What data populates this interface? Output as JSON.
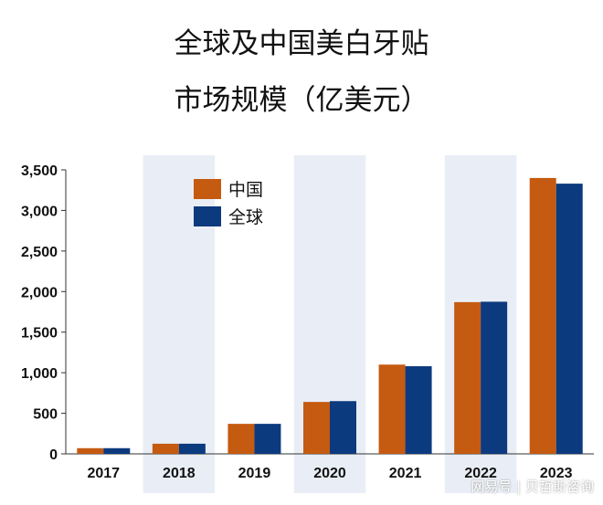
{
  "chart_data": {
    "type": "bar",
    "title_line1": "全球及中国美白牙贴",
    "title_line2": "市场规模（亿美元）",
    "categories": [
      "2017",
      "2018",
      "2019",
      "2020",
      "2021",
      "2022",
      "2023"
    ],
    "series": [
      {
        "name": "中国",
        "color": "#C55A11",
        "values": [
          70,
          125,
          370,
          640,
          1100,
          1870,
          3400
        ]
      },
      {
        "name": "全球",
        "color": "#0B3A7E",
        "values": [
          70,
          125,
          370,
          650,
          1080,
          1875,
          3330
        ]
      }
    ],
    "ylim": [
      0,
      3500
    ],
    "yticks": [
      0,
      500,
      1000,
      1500,
      2000,
      2500,
      3000,
      3500
    ],
    "ytick_labels": [
      "0",
      "500",
      "1,000",
      "1,500",
      "2,000",
      "2,500",
      "3,000",
      "3,500"
    ],
    "legend": "top-left",
    "band_color": "#E9EEF6"
  },
  "watermark": "网易号 | 贝哲斯咨询"
}
